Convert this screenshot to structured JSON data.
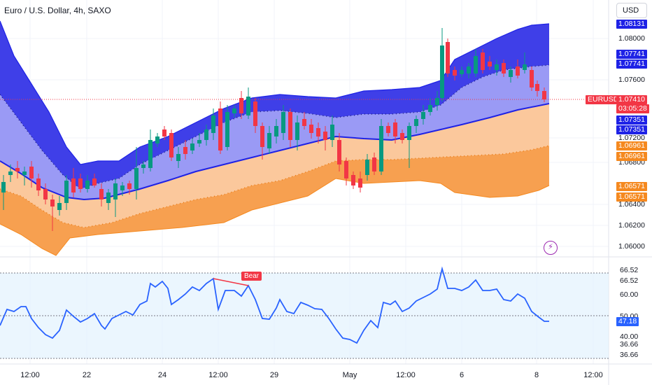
{
  "header": {
    "symbol_title": "Euro / U.S. Dollar, 4h, SAXO",
    "currency_button": "USD"
  },
  "price_axis": {
    "labels": [
      "1.08000",
      "1.07600",
      "1.07200",
      "1.06800",
      "1.06400",
      "1.06200",
      "1.06000"
    ],
    "tags": [
      {
        "id": "tag1",
        "text": "1.08131",
        "color": "#1e22e6"
      },
      {
        "id": "tag2",
        "text": "1.07741",
        "color": "#1e22e6"
      },
      {
        "id": "tag3",
        "text": "1.07741",
        "color": "#1e22e6"
      },
      {
        "id": "tag4",
        "text": "EURUSD",
        "color": "#f23645"
      },
      {
        "id": "tag5",
        "text": "1.07410",
        "color": "#f23645"
      },
      {
        "id": "tag6",
        "text": "03:05:28",
        "color": "#f23645"
      },
      {
        "id": "tag7",
        "text": "1.07351",
        "color": "#1e22e6"
      },
      {
        "id": "tag8",
        "text": "1.07351",
        "color": "#1e22e6"
      },
      {
        "id": "tag9",
        "text": "1.06961",
        "color": "#f5891f"
      },
      {
        "id": "tag10",
        "text": "1.06961",
        "color": "#f5891f"
      },
      {
        "id": "tag11",
        "text": "1.06571",
        "color": "#f5891f"
      },
      {
        "id": "tag12",
        "text": "1.06571",
        "color": "#f5891f"
      }
    ]
  },
  "indicator_axis": {
    "labels": [
      "66.52",
      "66.52",
      "60.00",
      "50.00",
      "40.00",
      "36.66",
      "36.66"
    ],
    "current_value": "47.18",
    "divergence_label": "Bear"
  },
  "time_axis": {
    "labels": [
      "12:00",
      "22",
      "24",
      "12:00",
      "29",
      "May",
      "12:00",
      "6",
      "8",
      "12:00"
    ]
  },
  "colors": {
    "up": "#089981",
    "down": "#f23645",
    "upper_band": "#3f3fe8",
    "mid_band": "#9a9af5",
    "lower_band": "#fbc89c",
    "lowest_band": "#f7a050",
    "rsi_line": "#2962ff",
    "rsi_bg": "#e3f2fd"
  },
  "icons": {
    "alert": "lightning-icon"
  }
}
